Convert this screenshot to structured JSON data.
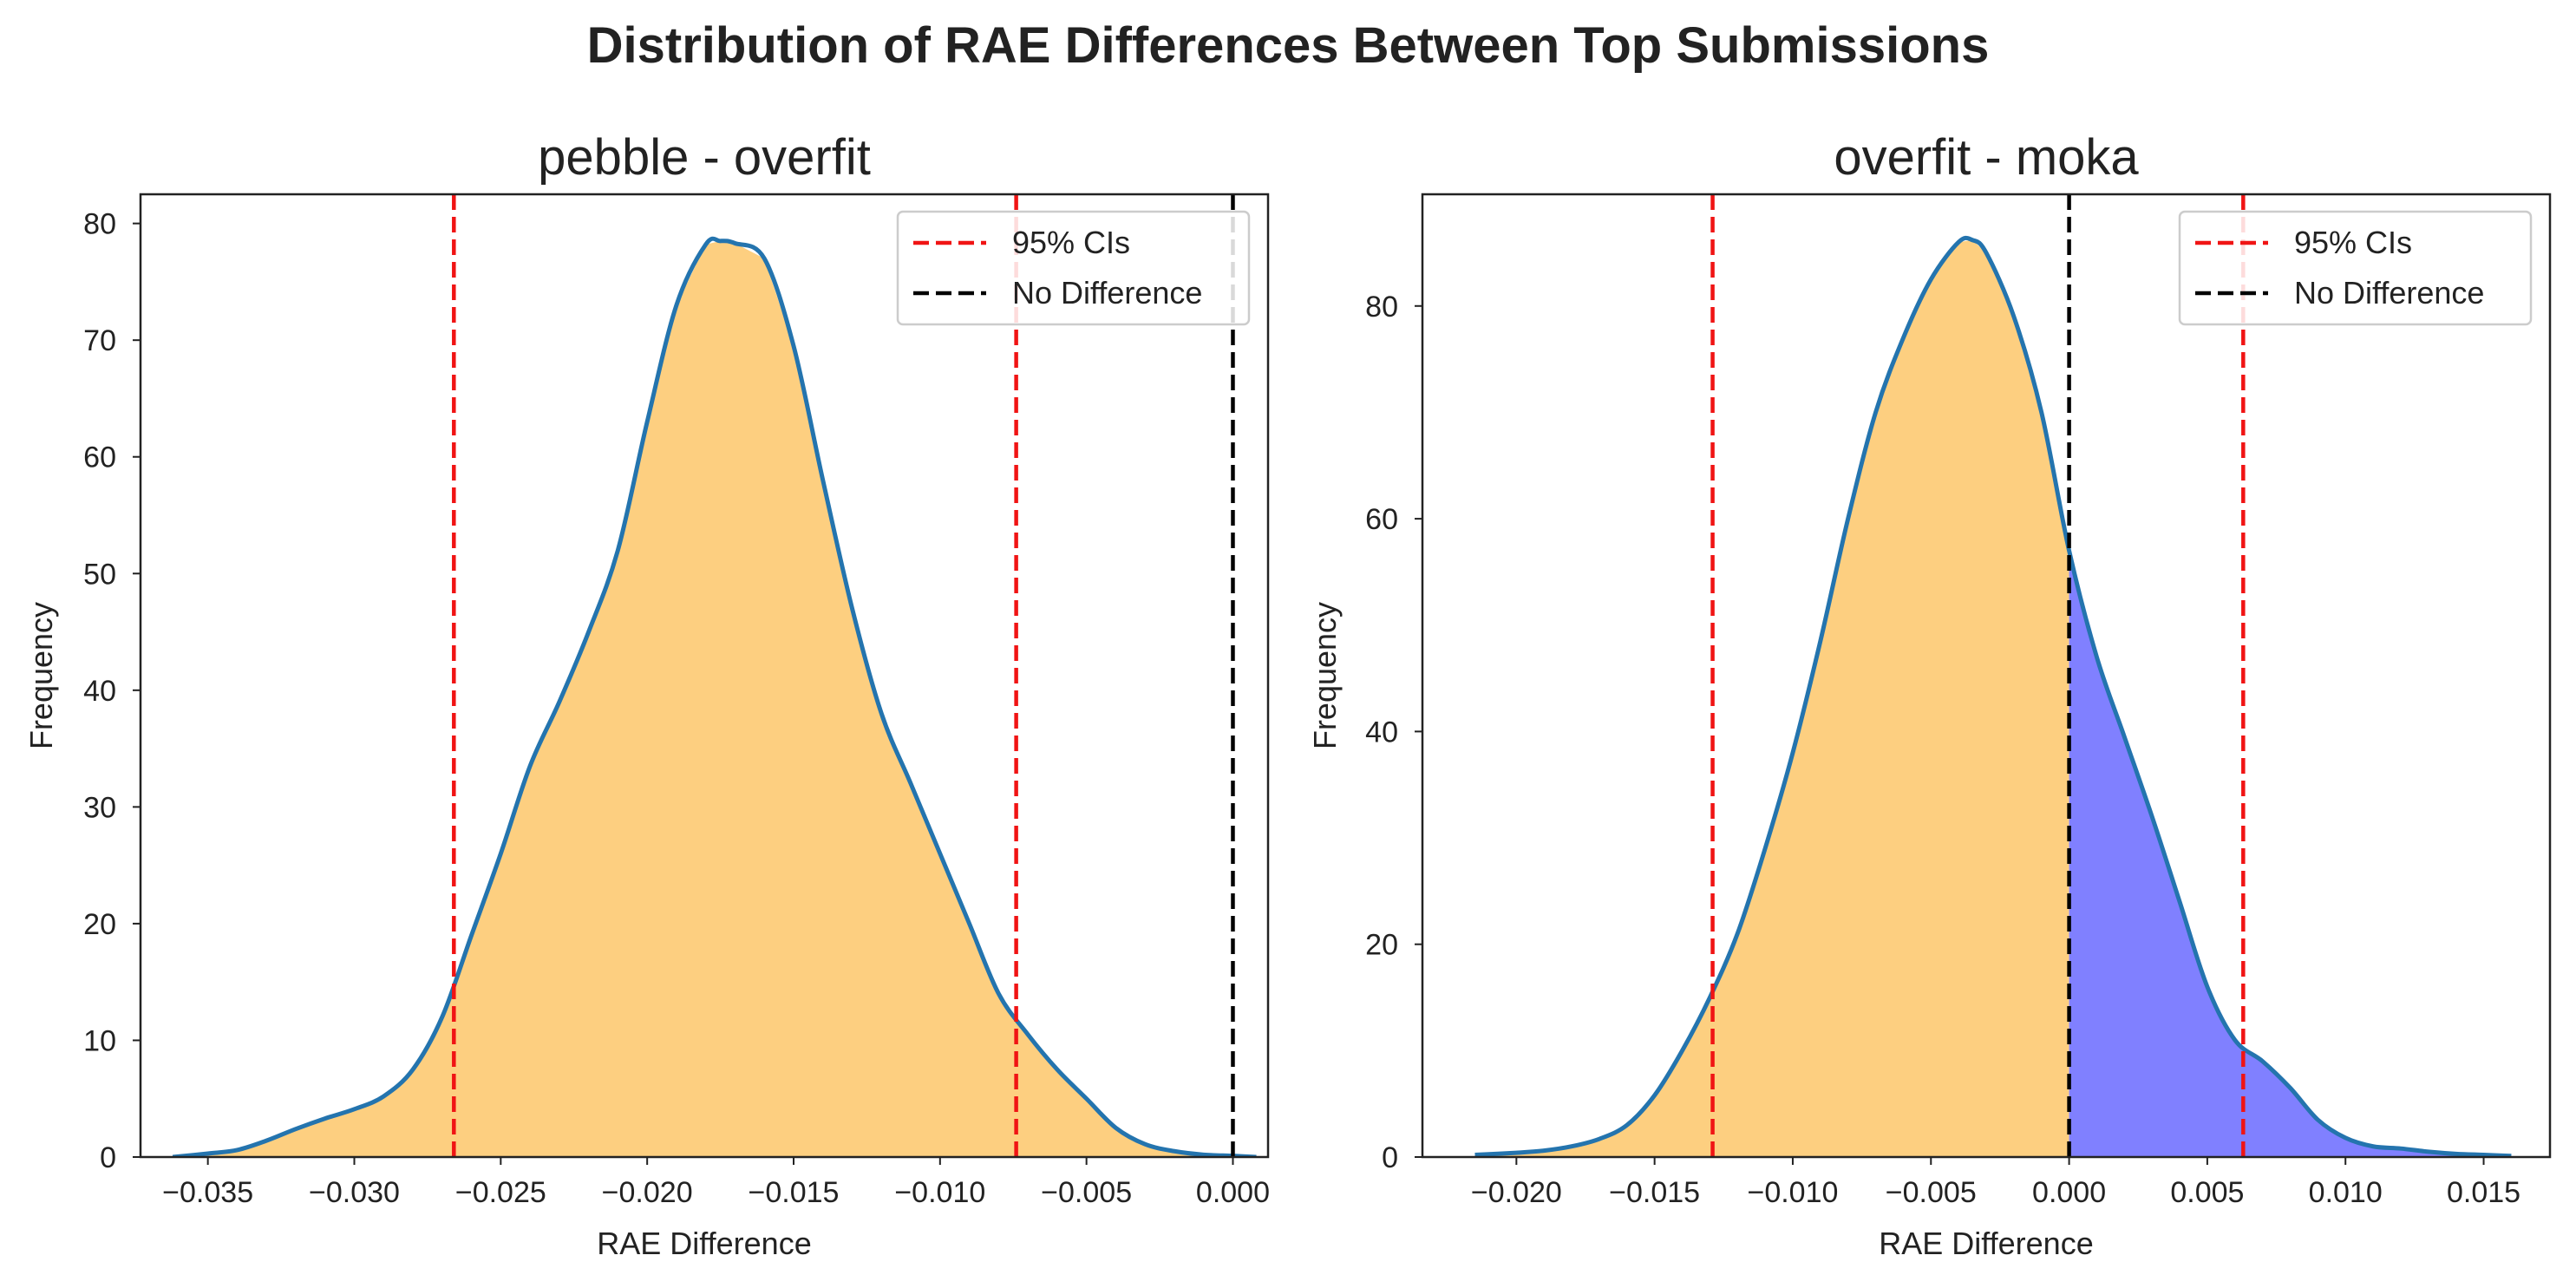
{
  "figure_title": "Distribution of RAE Differences Between Top Submissions",
  "chart_data": [
    {
      "type": "area",
      "title": "pebble - overfit",
      "xlabel": "RAE Difference",
      "ylabel": "Frequency",
      "xlim": [
        -0.0373,
        0.0012
      ],
      "ylim": [
        0,
        82.5
      ],
      "grid": false,
      "xticks": [
        -0.035,
        -0.03,
        -0.025,
        -0.02,
        -0.015,
        -0.01,
        -0.005,
        0.0
      ],
      "xtick_labels": [
        "−0.035",
        "−0.030",
        "−0.025",
        "−0.020",
        "−0.015",
        "−0.010",
        "−0.005",
        "0.000"
      ],
      "yticks": [
        0,
        10,
        20,
        30,
        40,
        50,
        60,
        70,
        80
      ],
      "ytick_labels": [
        "0",
        "10",
        "20",
        "30",
        "40",
        "50",
        "60",
        "70",
        "80"
      ],
      "x": [
        -0.0362,
        -0.035,
        -0.034,
        -0.033,
        -0.032,
        -0.031,
        -0.03,
        -0.029,
        -0.028,
        -0.027,
        -0.026,
        -0.025,
        -0.024,
        -0.023,
        -0.022,
        -0.021,
        -0.02,
        -0.019,
        -0.018,
        -0.0175,
        -0.017,
        -0.016,
        -0.015,
        -0.014,
        -0.013,
        -0.012,
        -0.011,
        -0.01,
        -0.009,
        -0.008,
        -0.007,
        -0.006,
        -0.005,
        -0.004,
        -0.003,
        -0.002,
        -0.001,
        0.0,
        0.0008
      ],
      "y": [
        0,
        0.3,
        0.6,
        1.4,
        2.4,
        3.3,
        4.1,
        5.2,
        7.5,
        12,
        19,
        26,
        33.5,
        39,
        45,
        52,
        63,
        73,
        78.2,
        78.5,
        78.3,
        77,
        69.5,
        58,
        47,
        38,
        32,
        26,
        20,
        14,
        10.5,
        7.5,
        5,
        2.5,
        1.1,
        0.5,
        0.2,
        0.1,
        0
      ],
      "fill_color": "#fdcf80",
      "line_color": "#2474ae",
      "ci_lines": [
        -0.0266,
        -0.0074
      ],
      "zero_line": 0.0,
      "legend": {
        "placement": "upper right",
        "items": [
          {
            "label": "95% CIs",
            "color": "#f01414",
            "style": "dashed"
          },
          {
            "label": "No Difference",
            "color": "#000000",
            "style": "dashed"
          }
        ]
      }
    },
    {
      "type": "area",
      "title": "overfit - moka",
      "xlabel": "RAE Difference",
      "ylabel": "Frequency",
      "xlim": [
        -0.0234,
        0.0174
      ],
      "ylim": [
        0,
        90.5
      ],
      "grid": false,
      "xticks": [
        -0.02,
        -0.015,
        -0.01,
        -0.005,
        0.0,
        0.005,
        0.01,
        0.015
      ],
      "xtick_labels": [
        "−0.020",
        "−0.015",
        "−0.010",
        "−0.005",
        "0.000",
        "0.005",
        "0.010",
        "0.015"
      ],
      "yticks": [
        0,
        20,
        40,
        60,
        80
      ],
      "ytick_labels": [
        "0",
        "20",
        "40",
        "60",
        "80"
      ],
      "x": [
        -0.0215,
        -0.02,
        -0.019,
        -0.018,
        -0.017,
        -0.016,
        -0.015,
        -0.014,
        -0.013,
        -0.012,
        -0.011,
        -0.01,
        -0.009,
        -0.008,
        -0.007,
        -0.006,
        -0.005,
        -0.004,
        -0.0035,
        -0.003,
        -0.002,
        -0.001,
        0.0,
        0.001,
        0.002,
        0.003,
        0.004,
        0.005,
        0.006,
        0.007,
        0.008,
        0.009,
        0.01,
        0.011,
        0.012,
        0.013,
        0.014,
        0.015,
        0.016
      ],
      "y": [
        0.2,
        0.4,
        0.6,
        1.0,
        1.7,
        3.0,
        5.8,
        10,
        15,
        21,
        29,
        38,
        48.5,
        60,
        70,
        77,
        82.5,
        86,
        86.2,
        85,
        79,
        70,
        57,
        47,
        39.5,
        32,
        24,
        16,
        11,
        9,
        6.5,
        3.5,
        1.8,
        1.0,
        0.8,
        0.5,
        0.3,
        0.2,
        0.1
      ],
      "fill_color_below_zero": "#fdcf80",
      "fill_color_above_zero": "#8080ff",
      "line_color": "#2474ae",
      "ci_lines": [
        -0.0129,
        0.0063
      ],
      "zero_line": 0.0,
      "legend": {
        "placement": "upper right",
        "items": [
          {
            "label": "95% CIs",
            "color": "#f01414",
            "style": "dashed"
          },
          {
            "label": "No Difference",
            "color": "#000000",
            "style": "dashed"
          }
        ]
      }
    }
  ]
}
